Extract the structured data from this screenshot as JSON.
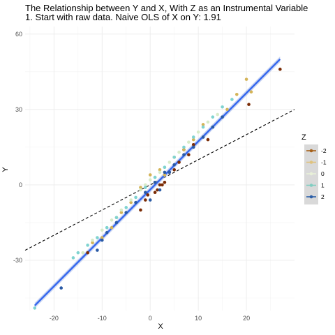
{
  "chart_data": {
    "type": "scatter",
    "title": "The Relationship between Y and X, With Z as an Instrumental Variable",
    "subtitle": "1. Start with raw data. Naive OLS of X on Y: 1.91",
    "xlabel": "X",
    "ylabel": "Y",
    "xlim": [
      -26,
      30
    ],
    "ylim": [
      -50,
      63
    ],
    "x_ticks": [
      -20,
      -10,
      0,
      10,
      20
    ],
    "y_ticks": [
      -30,
      0,
      30,
      60
    ],
    "grid": true,
    "legend": {
      "title": "Z",
      "position": "right",
      "entries": [
        {
          "label": "-2",
          "color": "#a6611a"
        },
        {
          "label": "-1",
          "color": "#dfc27d"
        },
        {
          "label": "0",
          "color": "#e8f0d8"
        },
        {
          "label": "1",
          "color": "#80cdc1"
        },
        {
          "label": "2",
          "color": "#2c5fa8"
        }
      ]
    },
    "fit_line": {
      "x": [
        -24,
        27
      ],
      "y": [
        -48,
        50
      ],
      "color": "#3366ee"
    },
    "reference_line": {
      "x": [
        -26,
        30
      ],
      "y": [
        -26,
        30
      ],
      "style": "dashed",
      "color": "#000000"
    },
    "series": [
      {
        "name": "-2",
        "color": "#7a2b05",
        "x": [
          27,
          20.5,
          12,
          8,
          6,
          3,
          2,
          2.5,
          1,
          -0.5,
          -1,
          4,
          7,
          1.5,
          -2,
          5,
          -13,
          9
        ],
        "y": [
          46,
          32,
          18,
          12,
          9,
          1,
          0,
          0,
          -3,
          -4,
          -6,
          5,
          14,
          -2,
          -10,
          6,
          -27,
          16
        ]
      },
      {
        "name": "-1",
        "color": "#d4b458",
        "x": [
          20,
          18,
          16,
          11,
          9,
          7,
          5,
          2,
          0,
          -2,
          -4,
          -6,
          -8,
          -10,
          -12,
          3,
          1,
          21,
          -7
        ],
        "y": [
          42,
          36,
          30,
          24,
          18,
          14,
          11,
          6,
          4,
          -1,
          -7,
          -11,
          -17,
          -21,
          -23,
          4,
          1,
          37,
          -13
        ]
      },
      {
        "name": "0",
        "color": "#d8ebc8",
        "x": [
          14,
          12,
          10,
          8,
          6,
          4,
          2,
          0,
          -2,
          -4,
          -6,
          -8,
          -10,
          -12,
          -14,
          1,
          -1,
          3
        ],
        "y": [
          28,
          25,
          21,
          17,
          13,
          9,
          5,
          2,
          -2,
          -6,
          -10,
          -14,
          -18,
          -22,
          -27,
          3,
          0,
          7
        ]
      },
      {
        "name": "1",
        "color": "#7fd3d0",
        "x": [
          17,
          15,
          13,
          11,
          9,
          7,
          5,
          3,
          1,
          -1,
          -3,
          -5,
          -7,
          -9,
          -11,
          -13,
          -15,
          -16,
          -24
        ],
        "y": [
          34,
          31,
          27,
          23,
          19,
          15,
          11,
          7,
          3,
          -1,
          -5,
          -9,
          -13,
          -17,
          -21,
          -24,
          -27,
          -29,
          -49
        ]
      },
      {
        "name": "2",
        "color": "#2a5aa5",
        "x": [
          15,
          13,
          11,
          9,
          7,
          5,
          3,
          1,
          -1,
          -3,
          -5,
          -7,
          -9,
          -10,
          -11,
          -18.5,
          4,
          2,
          0
        ],
        "y": [
          27,
          23,
          19,
          15,
          12,
          8,
          5,
          1,
          -3,
          -7,
          -11,
          -15,
          -19,
          -22,
          -26,
          -41,
          5,
          -2,
          -6
        ]
      }
    ]
  }
}
